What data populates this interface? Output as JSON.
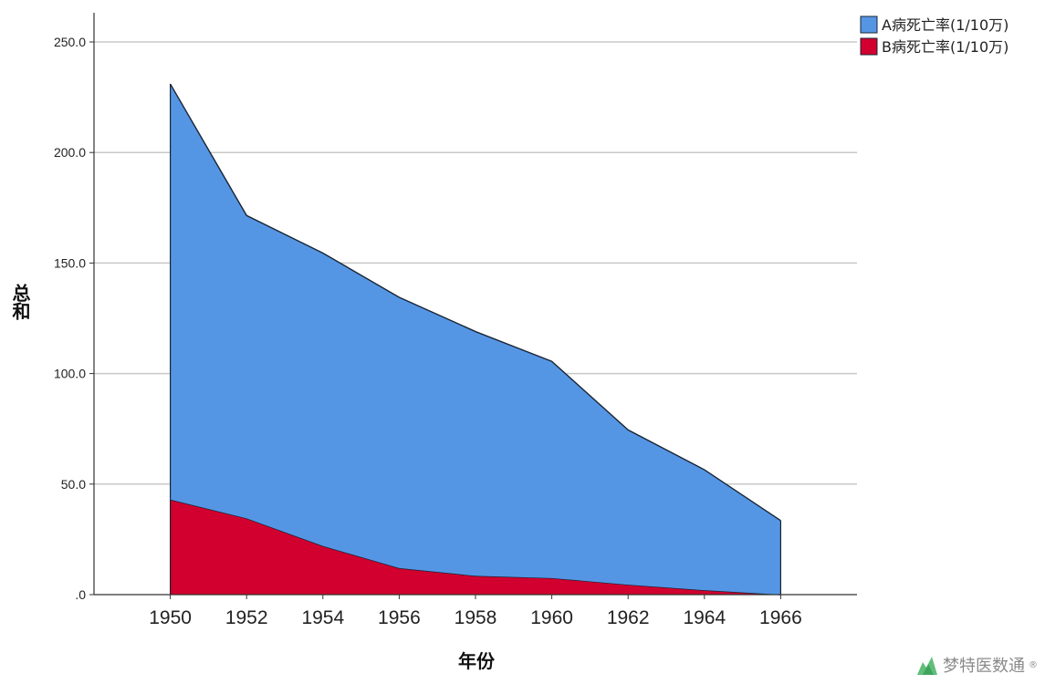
{
  "chart_data": {
    "type": "area",
    "stacked": true,
    "x": [
      1950,
      1952,
      1954,
      1956,
      1958,
      1960,
      1962,
      1964,
      1966
    ],
    "series": [
      {
        "name": "B病死亡率(1/10万)",
        "color": "#d2002e",
        "values": [
          43.0,
          34.5,
          22.0,
          12.0,
          8.5,
          7.5,
          4.5,
          2.0,
          0.0
        ]
      },
      {
        "name": "A病死亡率(1/10万)",
        "color": "#5596e4",
        "values": [
          188.0,
          137.0,
          132.5,
          122.5,
          110.5,
          98.0,
          70.0,
          54.5,
          33.5
        ]
      }
    ],
    "ylabel": "总和",
    "xlabel": "年份",
    "ylim": [
      0,
      250
    ],
    "xlim": [
      1948,
      1968
    ],
    "yticks": [
      ".0",
      "50.0",
      "100.0",
      "150.0",
      "200.0",
      "250.0"
    ],
    "ytick_values": [
      0,
      50,
      100,
      150,
      200,
      250
    ],
    "xticks": [
      "1950",
      "1952",
      "1954",
      "1956",
      "1958",
      "1960",
      "1962",
      "1964",
      "1966"
    ],
    "grid": true,
    "legend_position": "top-right",
    "legend_order": [
      "A病死亡率(1/10万)",
      "B病死亡率(1/10万)"
    ]
  },
  "watermark": {
    "text": "梦特医数通",
    "mark": "®"
  }
}
